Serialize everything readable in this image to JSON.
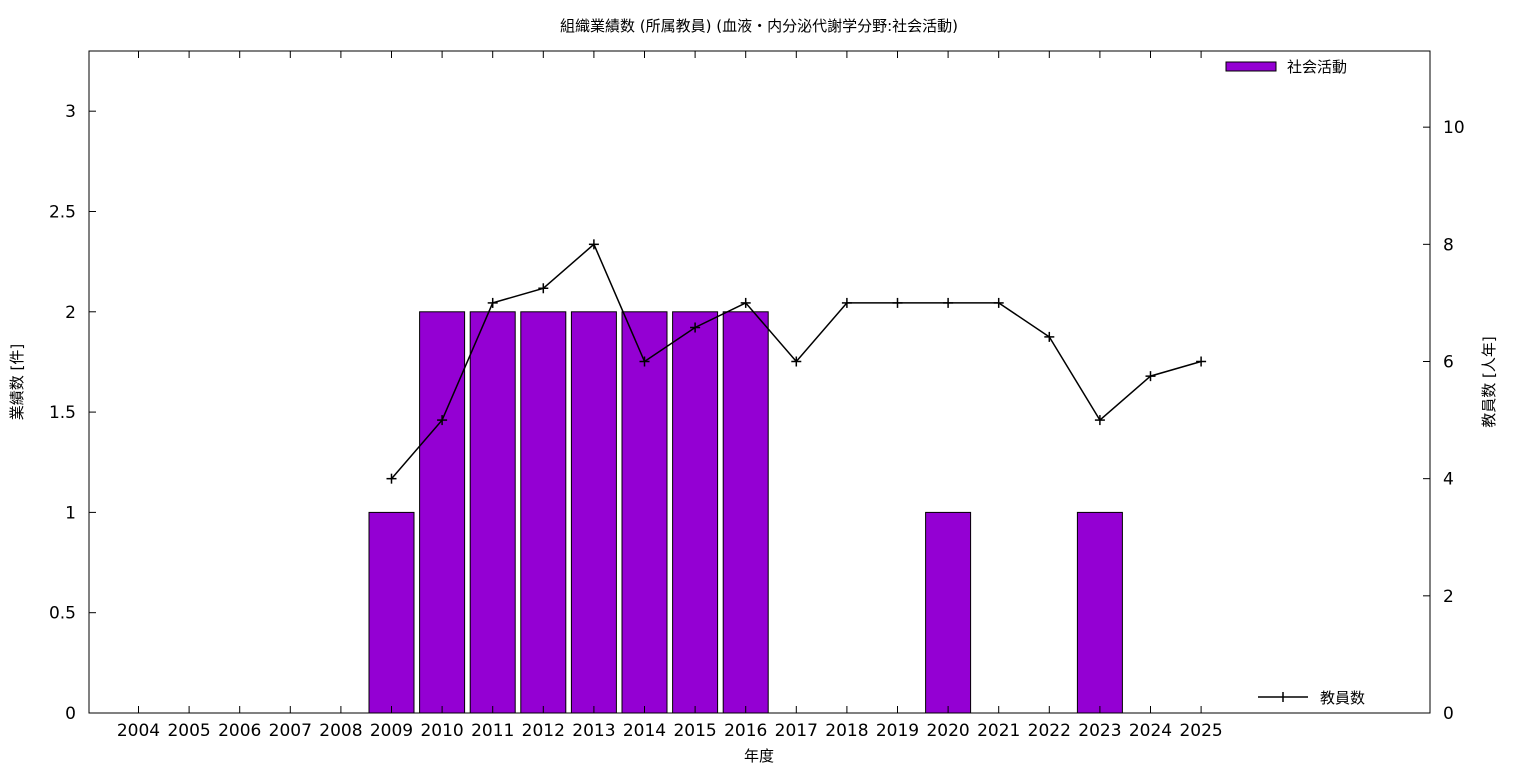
{
  "chart_data": {
    "type": "bar",
    "title": "組織業績数 (所属教員) (血液・内分泌代謝学分野:社会活動)",
    "xlabel": "年度",
    "ylabel": "業績数 [件]",
    "y2label": "教員数 [人年]",
    "categories": [
      "2004",
      "2005",
      "2006",
      "2007",
      "2008",
      "2009",
      "2010",
      "2011",
      "2012",
      "2013",
      "2014",
      "2015",
      "2016",
      "2017",
      "2018",
      "2019",
      "2020",
      "2021",
      "2022",
      "2023",
      "2024",
      "2025"
    ],
    "ylim": [
      0,
      3.3
    ],
    "yticks": [
      "0",
      "0.5",
      "1",
      "1.5",
      "2",
      "2.5",
      "3"
    ],
    "y2lim": [
      0,
      11.3
    ],
    "y2ticks": [
      "0",
      "2",
      "4",
      "6",
      "8",
      "10"
    ],
    "grid": false,
    "series": [
      {
        "name": "社会活動",
        "kind": "bar",
        "axis": "left",
        "color": "#9400d3",
        "values": [
          0,
          0,
          0,
          0,
          0,
          1,
          2,
          2,
          2,
          2,
          2,
          2,
          2,
          0,
          0,
          0,
          1,
          0,
          0,
          1,
          0,
          0
        ]
      },
      {
        "name": "教員数",
        "kind": "line",
        "axis": "right",
        "color": "#000000",
        "x": [
          "2009",
          "2010",
          "2011",
          "2012",
          "2013",
          "2014",
          "2015",
          "2016",
          "2017",
          "2018",
          "2019",
          "2020",
          "2021",
          "2022",
          "2023",
          "2024",
          "2025"
        ],
        "values": [
          4,
          5,
          7,
          7.25,
          8,
          6,
          6.58,
          7,
          6,
          7,
          7,
          7,
          7,
          6.42,
          5,
          5.75,
          6
        ]
      }
    ],
    "legend": [
      {
        "label": "社会活動",
        "position": "top-right"
      },
      {
        "label": "教員数",
        "position": "bottom-right"
      }
    ]
  }
}
